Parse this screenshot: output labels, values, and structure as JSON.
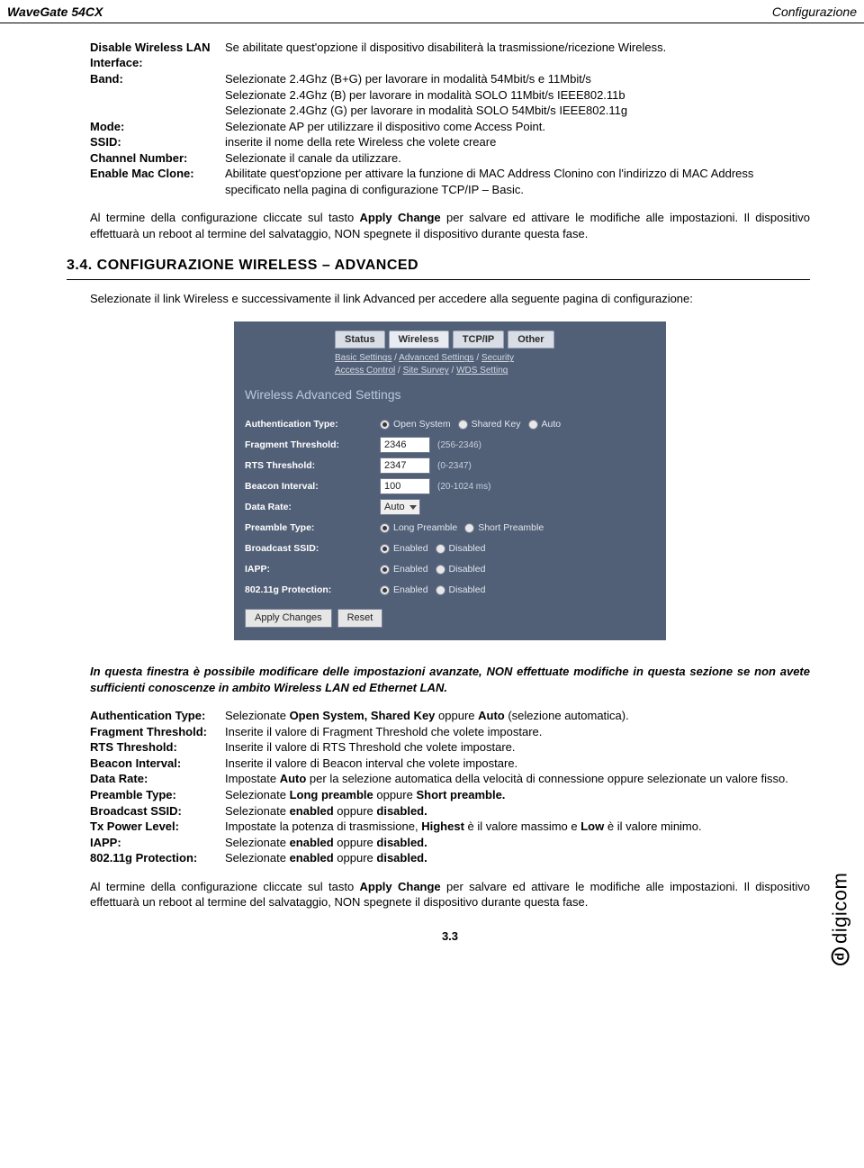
{
  "header": {
    "left": "WaveGate 54CX",
    "right": "Configurazione"
  },
  "defs1": [
    {
      "label": "Disable Wireless LAN Interface:",
      "lines": [
        "Se abilitate quest'opzione il dispositivo disabiliterà la trasmissione/ricezione Wireless."
      ]
    },
    {
      "label": "Band:",
      "lines": [
        "Selezionate 2.4Ghz (B+G) per lavorare in modalità 54Mbit/s e 11Mbit/s",
        "Selezionate 2.4Ghz (B) per lavorare in modalità SOLO 11Mbit/s IEEE802.11b",
        "Selezionate 2.4Ghz (G) per lavorare in modalità SOLO 54Mbit/s IEEE802.11g"
      ]
    },
    {
      "label": "Mode:",
      "lines": [
        "Selezionate AP per utilizzare il dispositivo come Access Point."
      ]
    },
    {
      "label": "SSID:",
      "lines": [
        "inserite il nome della rete Wireless che volete creare"
      ]
    },
    {
      "label": "Channel Number:",
      "lines": [
        "Selezionate il canale da utilizzare."
      ]
    },
    {
      "label": "Enable Mac Clone:",
      "lines": [
        "Abilitate quest'opzione per attivare la funzione di MAC Address Clonino con l'indirizzo di MAC Address specificato nella pagina di configurazione TCP/IP – Basic."
      ]
    }
  ],
  "para1_a": "Al termine della configurazione cliccate sul tasto ",
  "para1_b": "Apply Change",
  "para1_c": " per salvare ed attivare le modifiche alle impostazioni. Il dispositivo effettuarà un reboot al termine del salvataggio, NON spegnete il dispositivo durante questa fase.",
  "section": "3.4.  CONFIGURAZIONE WIRELESS – ADVANCED",
  "para2": "Selezionate il link Wireless e successivamente il link Advanced per accedere alla seguente pagina di configurazione:",
  "screenshot": {
    "tabs": [
      "Status",
      "Wireless",
      "TCP/IP",
      "Other"
    ],
    "active_tab": 1,
    "sublinks_line1": [
      "Basic Settings",
      "Advanced Settings",
      "Security"
    ],
    "sublinks_line2": [
      "Access Control",
      "Site Survey",
      "WDS Setting"
    ],
    "title": "Wireless Advanced Settings",
    "rows": [
      {
        "label": "Authentication Type:",
        "type": "radio3",
        "opts": [
          "Open System",
          "Shared Key",
          "Auto"
        ],
        "checked": 0
      },
      {
        "label": "Fragment Threshold:",
        "type": "text",
        "value": "2346",
        "hint": "(256-2346)"
      },
      {
        "label": "RTS Threshold:",
        "type": "text",
        "value": "2347",
        "hint": "(0-2347)"
      },
      {
        "label": "Beacon Interval:",
        "type": "text",
        "value": "100",
        "hint": "(20-1024 ms)"
      },
      {
        "label": "Data Rate:",
        "type": "select",
        "value": "Auto"
      },
      {
        "label": "Preamble Type:",
        "type": "radio2",
        "opts": [
          "Long Preamble",
          "Short Preamble"
        ],
        "checked": 0
      },
      {
        "label": "Broadcast SSID:",
        "type": "radio2",
        "opts": [
          "Enabled",
          "Disabled"
        ],
        "checked": 0
      },
      {
        "label": "IAPP:",
        "type": "radio2",
        "opts": [
          "Enabled",
          "Disabled"
        ],
        "checked": 0
      },
      {
        "label": "802.11g Protection:",
        "type": "radio2",
        "opts": [
          "Enabled",
          "Disabled"
        ],
        "checked": 0
      }
    ],
    "buttons": [
      "Apply Changes",
      "Reset"
    ]
  },
  "italic_note": "In questa finestra è possibile modificare delle impostazioni avanzate, NON effettuate modifiche in questa sezione se non avete sufficienti conoscenze in ambito Wireless LAN ed Ethernet LAN.",
  "defs2": [
    {
      "label": "Authentication Type:",
      "body_pre": "Selezionate ",
      "body_b": "Open System, Shared Key",
      "body_mid": " oppure ",
      "body_b2": "Auto",
      "body_post": " (selezione automatica)."
    },
    {
      "label": "Fragment Threshold:",
      "body": "Inserite il valore di Fragment Threshold che volete impostare."
    },
    {
      "label": "RTS Threshold:",
      "body": "Inserite il valore di RTS  Threshold che volete impostare."
    },
    {
      "label": "Beacon Interval:",
      "body": "Inserite il valore di Beacon interval che volete impostare."
    },
    {
      "label": "Data Rate:",
      "body_pre": "Impostate ",
      "body_b": "Auto",
      "body_post": " per la selezione automatica della velocità di connessione oppure selezionate un valore fisso."
    },
    {
      "label": "Preamble Type:",
      "body_pre": "Selezionate ",
      "body_b": "Long preamble",
      "body_mid": " oppure ",
      "body_b2": "Short preamble."
    },
    {
      "label": "Broadcast SSID:",
      "body_pre": "Selezionate ",
      "body_b": "enabled",
      "body_mid": " oppure ",
      "body_b2": "disabled."
    },
    {
      "label": "Tx Power Level:",
      "body_pre": "Impostate la potenza di trasmissione, ",
      "body_b": "Highest",
      "body_mid": " è il valore massimo e ",
      "body_b2": "Low",
      "body_post": " è il valore minimo."
    },
    {
      "label": "IAPP:",
      "body_pre": "Selezionate ",
      "body_b": "enabled",
      "body_mid": " oppure ",
      "body_b2": "disabled."
    },
    {
      "label": "802.11g Protection:",
      "body_pre": "Selezionate ",
      "body_b": "enabled",
      "body_mid": " oppure ",
      "body_b2": "disabled."
    }
  ],
  "para3_a": "Al termine della configurazione cliccate sul tasto ",
  "para3_b": "Apply Change",
  "para3_c": " per salvare ed attivare le modifiche alle impostazioni. Il dispositivo effettuarà un reboot al termine del salvataggio, NON spegnete il dispositivo durante questa fase.",
  "brand": "digicom",
  "page_num": "3.3"
}
